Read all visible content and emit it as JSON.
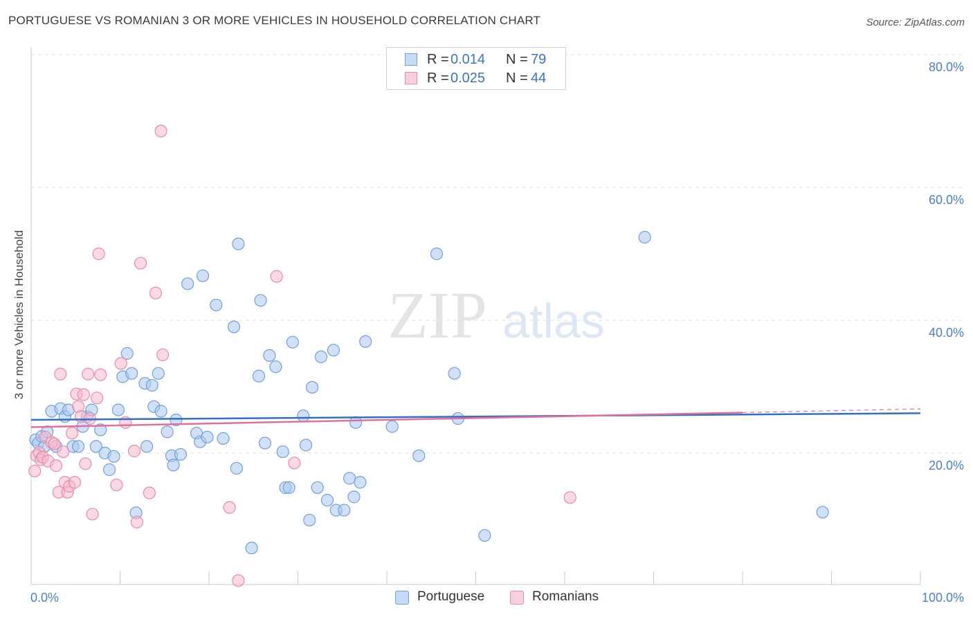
{
  "header": {
    "title": "PORTUGUESE VS ROMANIAN 3 OR MORE VEHICLES IN HOUSEHOLD CORRELATION CHART",
    "source": "Source: ZipAtlas.com"
  },
  "watermark": {
    "zip": "ZIP",
    "atlas": "atlas"
  },
  "stats_legend": {
    "rows": [
      {
        "r_label": "R =",
        "r_value": "0.014",
        "n_label": "N =",
        "n_value": "79"
      },
      {
        "r_label": "R =",
        "r_value": "0.025",
        "n_label": "N =",
        "n_value": "44"
      }
    ]
  },
  "colors": {
    "portuguese_fill": "#a9c8f0",
    "portuguese_stroke": "#6f9fdc",
    "portuguese_line": "#2f6fc4",
    "romanian_fill": "#f5b9cc",
    "romanian_stroke": "#e88aa8",
    "romanian_line": "#e0709a",
    "tick_label": "#4a7fcc",
    "grid": "#dcdcdc"
  },
  "chart_data": {
    "type": "scatter",
    "title": "PORTUGUESE VS ROMANIAN 3 OR MORE VEHICLES IN HOUSEHOLD CORRELATION CHART",
    "xlabel": "",
    "ylabel": "3 or more Vehicles in Household",
    "xlim": [
      0,
      100
    ],
    "ylim": [
      0,
      82
    ],
    "x_tick_labels": [
      "0.0%",
      "100.0%"
    ],
    "y_ticks": [
      20,
      40,
      60,
      80
    ],
    "y_tick_labels": [
      "20.0%",
      "40.0%",
      "60.0%",
      "80.0%"
    ],
    "grid": true,
    "legend_position": "bottom-center",
    "series": [
      {
        "name": "Portuguese",
        "r": 0.014,
        "n": 79,
        "trend": {
          "x": [
            0,
            100
          ],
          "y": [
            25.0,
            26.0
          ]
        },
        "points": [
          [
            0.5,
            22.0
          ],
          [
            0.8,
            21.5
          ],
          [
            1.2,
            22.5
          ],
          [
            1.5,
            21.0
          ],
          [
            1.8,
            23.2
          ],
          [
            2.3,
            26.3
          ],
          [
            2.8,
            21.0
          ],
          [
            3.3,
            26.7
          ],
          [
            3.8,
            25.5
          ],
          [
            4.2,
            26.5
          ],
          [
            4.7,
            21.0
          ],
          [
            5.3,
            21.0
          ],
          [
            5.8,
            24.0
          ],
          [
            6.3,
            25.5
          ],
          [
            6.8,
            26.5
          ],
          [
            7.3,
            21.0
          ],
          [
            7.8,
            23.5
          ],
          [
            8.3,
            20.0
          ],
          [
            8.8,
            17.5
          ],
          [
            9.3,
            19.5
          ],
          [
            9.8,
            26.5
          ],
          [
            10.3,
            31.5
          ],
          [
            10.8,
            35.0
          ],
          [
            11.3,
            32.0
          ],
          [
            11.8,
            11.0
          ],
          [
            12.8,
            30.5
          ],
          [
            13.0,
            21.0
          ],
          [
            13.6,
            30.2
          ],
          [
            13.8,
            27.0
          ],
          [
            14.3,
            32.0
          ],
          [
            14.6,
            26.3
          ],
          [
            15.3,
            23.2
          ],
          [
            15.8,
            19.6
          ],
          [
            16.0,
            18.2
          ],
          [
            16.3,
            25.0
          ],
          [
            16.8,
            19.8
          ],
          [
            17.6,
            45.5
          ],
          [
            18.6,
            23.0
          ],
          [
            19.0,
            21.7
          ],
          [
            19.3,
            46.7
          ],
          [
            19.8,
            22.4
          ],
          [
            20.8,
            42.3
          ],
          [
            21.6,
            22.2
          ],
          [
            22.8,
            39.0
          ],
          [
            23.1,
            17.7
          ],
          [
            23.3,
            51.5
          ],
          [
            24.8,
            5.7
          ],
          [
            25.6,
            31.6
          ],
          [
            25.8,
            43.0
          ],
          [
            26.3,
            21.5
          ],
          [
            26.8,
            34.7
          ],
          [
            27.5,
            33.0
          ],
          [
            28.3,
            20.2
          ],
          [
            28.6,
            14.8
          ],
          [
            29.0,
            14.8
          ],
          [
            29.4,
            36.7
          ],
          [
            30.6,
            25.6
          ],
          [
            30.9,
            21.2
          ],
          [
            31.3,
            9.9
          ],
          [
            31.6,
            29.9
          ],
          [
            32.2,
            14.8
          ],
          [
            32.6,
            34.5
          ],
          [
            33.3,
            12.9
          ],
          [
            34.0,
            35.5
          ],
          [
            34.3,
            11.4
          ],
          [
            35.2,
            11.4
          ],
          [
            35.8,
            16.2
          ],
          [
            36.3,
            13.4
          ],
          [
            36.5,
            24.6
          ],
          [
            37.0,
            15.6
          ],
          [
            37.6,
            36.8
          ],
          [
            40.6,
            24.0
          ],
          [
            43.6,
            19.6
          ],
          [
            45.6,
            50.0
          ],
          [
            47.6,
            32.0
          ],
          [
            48.0,
            25.2
          ],
          [
            51.0,
            7.6
          ],
          [
            69.0,
            52.5
          ],
          [
            89.0,
            11.1
          ]
        ]
      },
      {
        "name": "Romanians",
        "r": 0.025,
        "n": 44,
        "trend": {
          "x": [
            0,
            80
          ],
          "y": [
            23.9,
            26.1
          ]
        },
        "points": [
          [
            0.4,
            17.3
          ],
          [
            0.6,
            19.6
          ],
          [
            0.9,
            20.1
          ],
          [
            1.1,
            19.0
          ],
          [
            1.3,
            19.4
          ],
          [
            1.6,
            22.4
          ],
          [
            1.9,
            18.8
          ],
          [
            2.3,
            21.6
          ],
          [
            2.6,
            21.4
          ],
          [
            2.8,
            18.1
          ],
          [
            3.1,
            14.1
          ],
          [
            3.3,
            31.9
          ],
          [
            3.6,
            20.2
          ],
          [
            3.8,
            15.6
          ],
          [
            4.1,
            14.1
          ],
          [
            4.3,
            15.0
          ],
          [
            4.6,
            23.0
          ],
          [
            4.9,
            15.6
          ],
          [
            5.1,
            28.9
          ],
          [
            5.3,
            27.0
          ],
          [
            5.6,
            25.5
          ],
          [
            5.9,
            28.8
          ],
          [
            6.1,
            18.4
          ],
          [
            6.4,
            31.9
          ],
          [
            6.6,
            25.2
          ],
          [
            6.9,
            10.8
          ],
          [
            7.4,
            28.3
          ],
          [
            7.6,
            50.0
          ],
          [
            7.8,
            31.8
          ],
          [
            9.6,
            15.2
          ],
          [
            10.1,
            33.5
          ],
          [
            10.6,
            24.6
          ],
          [
            11.6,
            20.3
          ],
          [
            11.9,
            9.6
          ],
          [
            12.3,
            48.6
          ],
          [
            13.3,
            14.0
          ],
          [
            14.0,
            44.1
          ],
          [
            14.8,
            34.8
          ],
          [
            14.6,
            68.5
          ],
          [
            22.3,
            11.8
          ],
          [
            23.3,
            0.8
          ],
          [
            27.6,
            46.6
          ],
          [
            29.6,
            18.5
          ],
          [
            60.6,
            13.3
          ]
        ]
      }
    ]
  },
  "bottom_legend": {
    "items": [
      {
        "label": "Portuguese"
      },
      {
        "label": "Romanians"
      }
    ]
  }
}
